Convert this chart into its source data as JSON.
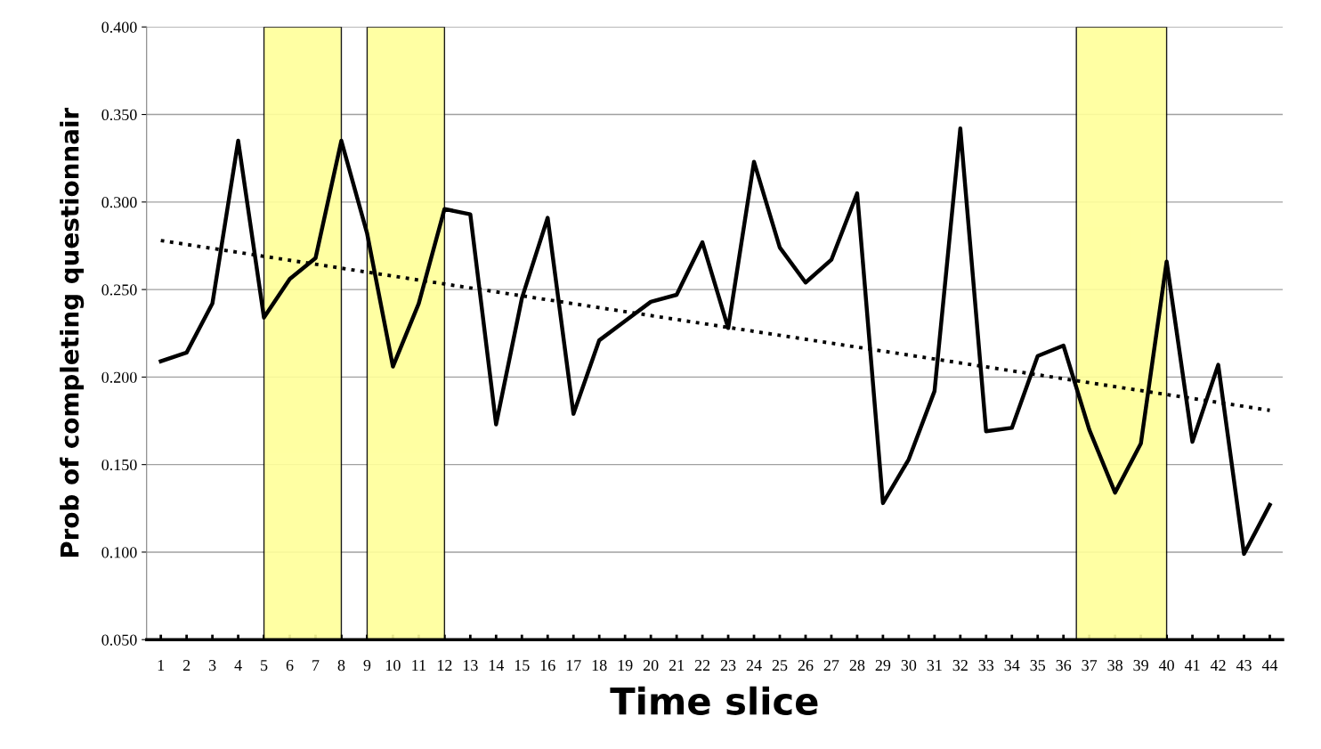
{
  "chart_data": {
    "type": "line",
    "xlabel": "Time slice",
    "ylabel": "Prob of completing questionnair",
    "x": [
      1,
      2,
      3,
      4,
      5,
      6,
      7,
      8,
      9,
      10,
      11,
      12,
      13,
      14,
      15,
      16,
      17,
      18,
      19,
      20,
      21,
      22,
      23,
      24,
      25,
      26,
      27,
      28,
      29,
      30,
      31,
      32,
      33,
      34,
      35,
      36,
      37,
      38,
      39,
      40,
      41,
      42,
      43,
      44
    ],
    "xlim": [
      0.45,
      44.5
    ],
    "xticks": [
      1,
      2,
      3,
      4,
      5,
      6,
      7,
      8,
      9,
      10,
      11,
      12,
      13,
      14,
      15,
      16,
      17,
      18,
      19,
      20,
      21,
      22,
      23,
      24,
      25,
      26,
      27,
      28,
      29,
      30,
      31,
      32,
      33,
      34,
      35,
      36,
      37,
      38,
      39,
      40,
      41,
      42,
      43,
      44
    ],
    "ylim": [
      0.05,
      0.4
    ],
    "yticks": [
      {
        "value": 0.05,
        "label": "0.050"
      },
      {
        "value": 0.1,
        "label": "0.100"
      },
      {
        "value": 0.15,
        "label": "0.150"
      },
      {
        "value": 0.2,
        "label": "0.200"
      },
      {
        "value": 0.25,
        "label": "0.250"
      },
      {
        "value": 0.3,
        "label": "0.300"
      },
      {
        "value": 0.35,
        "label": "0.350"
      },
      {
        "value": 0.4,
        "label": "0.400"
      }
    ],
    "grid": "y",
    "legend": false,
    "series": [
      {
        "color": "#000000",
        "line_style": "solid",
        "values": [
          0.209,
          0.214,
          0.242,
          0.335,
          0.234,
          0.256,
          0.268,
          0.335,
          0.282,
          0.206,
          0.242,
          0.296,
          0.293,
          0.173,
          0.245,
          0.291,
          0.179,
          0.221,
          0.232,
          0.243,
          0.247,
          0.277,
          0.228,
          0.323,
          0.274,
          0.254,
          0.267,
          0.305,
          0.128,
          0.153,
          0.192,
          0.342,
          0.169,
          0.171,
          0.212,
          0.218,
          0.17,
          0.134,
          0.162,
          0.266,
          0.163,
          0.207,
          0.099,
          0.127
        ]
      },
      {
        "type": "line",
        "color": "#000000",
        "line_style": "dotted",
        "x": [
          1,
          44
        ],
        "values": [
          0.278,
          0.181
        ]
      }
    ],
    "bands": [
      {
        "axis": "x",
        "from": 5,
        "to": 8,
        "color": "#ffff99"
      },
      {
        "axis": "x",
        "from": 9,
        "to": 12,
        "color": "#ffff99"
      },
      {
        "axis": "x",
        "from": 36.5,
        "to": 40,
        "color": "#ffff99"
      }
    ]
  }
}
